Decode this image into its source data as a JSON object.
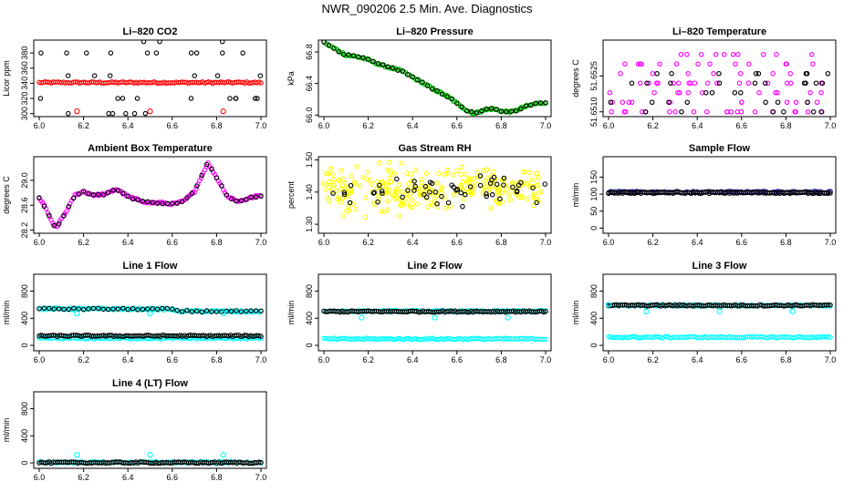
{
  "title": "NWR_090206  2.5 Min. Ave. Diagnostics",
  "colors": {
    "black": "#000000",
    "red": "#ff0000",
    "green": "#00cc00",
    "magenta": "#ff00ff",
    "yellow": "#ffff00",
    "cyan": "#00ffff",
    "navy": "#000080"
  },
  "chart_data": [
    {
      "type": "scatter",
      "title": "Li–820 CO2",
      "ylabel": "Licor ppm",
      "xlim": [
        6.0,
        7.0
      ],
      "ylim": [
        296,
        397
      ],
      "xticks": [
        "6.0",
        "6.2",
        "6.4",
        "6.6",
        "6.8",
        "7.0"
      ],
      "yticks": [
        "300",
        "320",
        "340",
        "360",
        "380"
      ],
      "series": [
        {
          "color": "red",
          "kind": "band",
          "y": 341
        },
        {
          "color": "black",
          "kind": "levels",
          "y": [
            300,
            320,
            350,
            380,
            395
          ]
        },
        {
          "color": "red",
          "kind": "points",
          "x": [
            6.17,
            6.5,
            6.83
          ],
          "y": [
            303,
            303,
            303
          ]
        }
      ]
    },
    {
      "type": "scatter",
      "title": "Li–820 Pressure",
      "ylabel": "kPa",
      "xlim": [
        6.0,
        7.0
      ],
      "ylim": [
        65.98,
        66.95
      ],
      "xticks": [
        "6.0",
        "6.2",
        "6.4",
        "6.6",
        "6.8",
        "7.0"
      ],
      "yticks": [
        "66.0",
        "66.4",
        "66.8"
      ],
      "series": [
        {
          "color": "green",
          "kind": "line",
          "x": [
            6.0,
            6.05,
            6.1,
            6.15,
            6.2,
            6.25,
            6.3,
            6.35,
            6.4,
            6.45,
            6.5,
            6.55,
            6.6,
            6.65,
            6.68,
            6.72,
            6.76,
            6.8,
            6.85,
            6.9,
            6.95,
            7.0
          ],
          "y": [
            66.92,
            66.84,
            66.76,
            66.74,
            66.7,
            66.64,
            66.6,
            66.56,
            66.48,
            66.4,
            66.32,
            66.25,
            66.15,
            66.05,
            66.02,
            66.06,
            66.08,
            66.05,
            66.04,
            66.1,
            66.14,
            66.16
          ]
        }
      ]
    },
    {
      "type": "scatter",
      "title": "Li–820 Temperature",
      "ylabel": "degrees C",
      "xlim": [
        6.0,
        7.0
      ],
      "ylim": [
        51.6508,
        51.654
      ],
      "xticks": [
        "6.0",
        "6.2",
        "6.4",
        "6.6",
        "6.8",
        "7.0"
      ],
      "yticks": [
        "51.6510",
        "51.6525"
      ],
      "series": [
        {
          "color": "magenta",
          "kind": "levels",
          "y": [
            51.651,
            51.6514,
            51.6518,
            51.6522,
            51.6526,
            51.653,
            51.6534
          ]
        },
        {
          "color": "black",
          "kind": "levels",
          "y": [
            51.651,
            51.6514,
            51.6518,
            51.6522,
            51.6526
          ]
        }
      ]
    },
    {
      "type": "scatter",
      "title": "Ambient Box Temperature",
      "ylabel": "degrees C",
      "xlim": [
        6.0,
        7.0
      ],
      "ylim": [
        28.15,
        29.38
      ],
      "xticks": [
        "6.0",
        "6.2",
        "6.4",
        "6.6",
        "6.8",
        "7.0"
      ],
      "yticks": [
        "28.2",
        "28.6",
        "29.0"
      ],
      "series": [
        {
          "color": "magenta",
          "kind": "line",
          "x": [
            6.0,
            6.03,
            6.06,
            6.08,
            6.1,
            6.13,
            6.16,
            6.2,
            6.25,
            6.3,
            6.35,
            6.4,
            6.45,
            6.5,
            6.55,
            6.6,
            6.65,
            6.7,
            6.73,
            6.76,
            6.8,
            6.85,
            6.9,
            6.95,
            7.0
          ],
          "y": [
            28.72,
            28.55,
            28.3,
            28.25,
            28.38,
            28.55,
            28.76,
            28.82,
            28.76,
            28.78,
            28.86,
            28.74,
            28.68,
            28.64,
            28.64,
            28.62,
            28.66,
            28.82,
            29.05,
            29.28,
            29.05,
            28.74,
            28.66,
            28.72,
            28.76
          ]
        }
      ]
    },
    {
      "type": "scatter",
      "title": "Gas Stream RH",
      "ylabel": "percent",
      "xlim": [
        6.0,
        7.0
      ],
      "ylim": [
        1.272,
        1.51
      ],
      "xticks": [
        "6.0",
        "6.2",
        "6.4",
        "6.6",
        "6.8",
        "7.0"
      ],
      "yticks": [
        "1.30",
        "1.40",
        "1.50"
      ],
      "series": [
        {
          "color": "yellow",
          "kind": "cloud",
          "center": 1.41,
          "spread": 0.05
        },
        {
          "color": "black",
          "kind": "cloud",
          "center": 1.41,
          "spread": 0.035
        }
      ]
    },
    {
      "type": "scatter",
      "title": "Sample Flow",
      "ylabel": "ml/min",
      "xlim": [
        6.0,
        7.0
      ],
      "ylim": [
        -15,
        210
      ],
      "xticks": [
        "6.0",
        "6.2",
        "6.4",
        "6.6",
        "6.8",
        "7.0"
      ],
      "yticks": [
        "0",
        "50",
        "100",
        "150"
      ],
      "series": [
        {
          "color": "navy",
          "kind": "band",
          "y": 106
        },
        {
          "color": "black",
          "kind": "band",
          "y": 104
        }
      ]
    },
    {
      "type": "scatter",
      "title": "Line 1 Flow",
      "ylabel": "ml/min",
      "xlim": [
        6.0,
        7.0
      ],
      "ylim": [
        -80,
        1050
      ],
      "xticks": [
        "6.0",
        "6.2",
        "6.4",
        "6.6",
        "6.8",
        "7.0"
      ],
      "yticks": [
        "0",
        "400",
        "800"
      ],
      "series": [
        {
          "color": "cyan",
          "kind": "line",
          "x": [
            6.0,
            6.6,
            6.62,
            7.0
          ],
          "y": [
            540,
            535,
            505,
            500
          ]
        },
        {
          "color": "cyan",
          "kind": "band",
          "y": 105
        },
        {
          "color": "black",
          "kind": "band",
          "y": 140
        },
        {
          "color": "cyan",
          "kind": "points",
          "x": [
            6.17,
            6.5,
            6.83
          ],
          "y": [
            470,
            470,
            470
          ]
        }
      ]
    },
    {
      "type": "scatter",
      "title": "Line 2 Flow",
      "ylabel": "ml/min",
      "xlim": [
        6.0,
        7.0
      ],
      "ylim": [
        -80,
        1050
      ],
      "xticks": [
        "6.0",
        "6.2",
        "6.4",
        "6.6",
        "6.8",
        "7.0"
      ],
      "yticks": [
        "0",
        "400",
        "800"
      ],
      "series": [
        {
          "color": "cyan",
          "kind": "band",
          "y": 505
        },
        {
          "color": "black",
          "kind": "band",
          "y": 500
        },
        {
          "color": "cyan",
          "kind": "band",
          "y": 95
        },
        {
          "color": "cyan",
          "kind": "points",
          "x": [
            6.17,
            6.5,
            6.83
          ],
          "y": [
            410,
            410,
            410
          ]
        }
      ]
    },
    {
      "type": "scatter",
      "title": "Line 3 Flow",
      "ylabel": "ml/min",
      "xlim": [
        6.0,
        7.0
      ],
      "ylim": [
        -80,
        1050
      ],
      "xticks": [
        "6.0",
        "6.2",
        "6.4",
        "6.6",
        "6.8",
        "7.0"
      ],
      "yticks": [
        "0",
        "400",
        "800"
      ],
      "series": [
        {
          "color": "cyan",
          "kind": "band",
          "y": 590
        },
        {
          "color": "black",
          "kind": "band",
          "y": 590
        },
        {
          "color": "cyan",
          "kind": "band",
          "y": 120
        },
        {
          "color": "cyan",
          "kind": "points",
          "x": [
            6.0,
            6.17,
            6.5,
            6.83
          ],
          "y": [
            600,
            500,
            500,
            500
          ]
        }
      ]
    },
    {
      "type": "scatter",
      "title": "Line 4 (LT) Flow",
      "ylabel": "ml/min",
      "xlim": [
        6.0,
        7.0
      ],
      "ylim": [
        -80,
        1050
      ],
      "xticks": [
        "6.0",
        "6.2",
        "6.4",
        "6.6",
        "6.8",
        "7.0"
      ],
      "yticks": [
        "0",
        "400",
        "800"
      ],
      "series": [
        {
          "color": "cyan",
          "kind": "band",
          "y": 8
        },
        {
          "color": "black",
          "kind": "band",
          "y": 4
        },
        {
          "color": "cyan",
          "kind": "points",
          "x": [
            6.17,
            6.5,
            6.83
          ],
          "y": [
            120,
            120,
            120
          ]
        }
      ]
    }
  ]
}
